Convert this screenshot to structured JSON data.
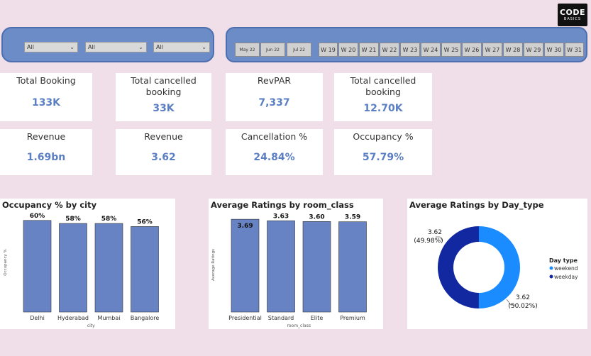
{
  "logo": {
    "line1": "CODE",
    "line2": "BASICS"
  },
  "filters": [
    {
      "value": "All"
    },
    {
      "value": "All"
    },
    {
      "value": "All"
    }
  ],
  "months": [
    "May 22",
    "Jun 22",
    "Jul 22"
  ],
  "weeks": [
    "W 19",
    "W 20",
    "W 21",
    "W 22",
    "W 23",
    "W 24",
    "W 25",
    "W 26",
    "W 27",
    "W 28",
    "W 29",
    "W 30",
    "W 31"
  ],
  "kpis": {
    "total_booking": {
      "label": "Total Booking",
      "value": "133K"
    },
    "total_cancelled_1": {
      "label": "Total cancelled booking",
      "value": "33K"
    },
    "revpar": {
      "label": "RevPAR",
      "value": "7,337"
    },
    "total_cancelled_2": {
      "label": "Total cancelled booking",
      "value": "12.70K"
    },
    "revenue_1": {
      "label": "Revenue",
      "value": "1.69bn"
    },
    "revenue_2": {
      "label": "Revenue",
      "value": "3.62"
    },
    "cancellation": {
      "label": "Cancellation %",
      "value": "24.84%"
    },
    "occupancy": {
      "label": "Occupancy %",
      "value": "57.79%"
    }
  },
  "colors": {
    "bar": "#6783c3",
    "weekend": "#1a8cff",
    "weekday": "#1228a0",
    "kpi_value": "#5b7fc2"
  },
  "chart_data": [
    {
      "type": "bar",
      "title": "Occupancy % by city",
      "xlabel": "city",
      "ylabel": "Occupancy %",
      "categories": [
        "Delhi",
        "Hyderabad",
        "Mumbai",
        "Bangalore"
      ],
      "values": [
        60,
        58,
        58,
        56
      ],
      "data_labels": [
        "60%",
        "58%",
        "58%",
        "56%"
      ],
      "ylim": [
        0,
        65
      ]
    },
    {
      "type": "bar",
      "title": "Average Ratings by room_class",
      "xlabel": "room_class",
      "ylabel": "Average Ratings",
      "categories": [
        "Presidential",
        "Standard",
        "Elite",
        "Premium"
      ],
      "values": [
        3.69,
        3.63,
        3.6,
        3.59
      ],
      "data_labels": [
        "3.69",
        "3.63",
        "3.60",
        "3.59"
      ],
      "ylim": [
        0,
        3.75
      ]
    },
    {
      "type": "pie",
      "title": "Average Ratings by Day_type",
      "legend_title": "Day type",
      "legend_position": "right",
      "categories": [
        "weekend",
        "weekday"
      ],
      "values": [
        3.62,
        3.62
      ],
      "percents": [
        50.02,
        49.98
      ],
      "data_labels": [
        "3.62",
        "(50.02%)",
        "3.62",
        "(49.98%)"
      ]
    }
  ]
}
